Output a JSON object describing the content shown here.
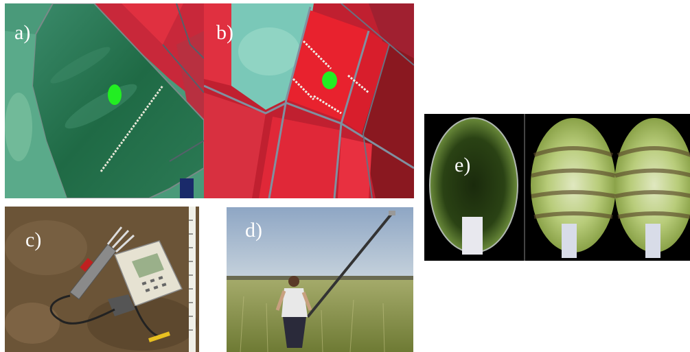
{
  "panels": {
    "a": {
      "label": "a)"
    },
    "b": {
      "label": "b)"
    },
    "c": {
      "label": "c)"
    },
    "d": {
      "label": "d)"
    },
    "e": {
      "label": "e)"
    }
  },
  "colors": {
    "field_green": "#1f6a45",
    "field_red": "#e0202e",
    "marker_green": "#22ee22",
    "sky": "#aebfd3",
    "wheat": "#8c9a4a",
    "soil": "#6b5437",
    "hemi_dark": "#1d2e10",
    "hemi_light": "#c8d88c"
  }
}
